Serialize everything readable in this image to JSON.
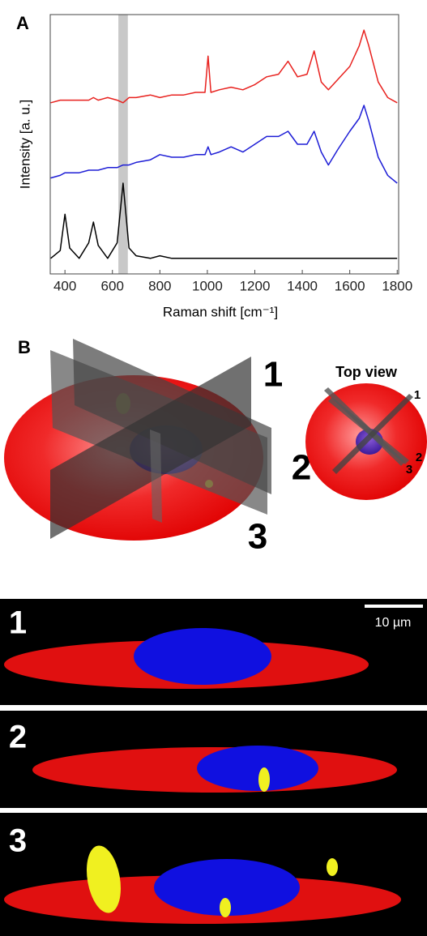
{
  "chart_data": {
    "type": "line",
    "panel_label": "A",
    "x_label": "Raman shift [cm⁻¹]",
    "y_label": "Intensity [a. u.]",
    "x": [
      340,
      380,
      400,
      420,
      460,
      500,
      520,
      540,
      580,
      620,
      645,
      670,
      700,
      760,
      800,
      850,
      900,
      950,
      990,
      1003,
      1015,
      1050,
      1100,
      1150,
      1200,
      1250,
      1300,
      1340,
      1380,
      1420,
      1450,
      1480,
      1510,
      1550,
      1600,
      1640,
      1660,
      1680,
      1720,
      1760,
      1800
    ],
    "series": [
      {
        "color": "#e8211e",
        "values": [
          66,
          67,
          67,
          67,
          67,
          67,
          68,
          67,
          68,
          67,
          66,
          68,
          68,
          69,
          68,
          69,
          69,
          70,
          70,
          84,
          70,
          71,
          72,
          71,
          73,
          76,
          77,
          82,
          76,
          77,
          86,
          74,
          71,
          75,
          80,
          88,
          94,
          88,
          74,
          68,
          66
        ]
      },
      {
        "color": "#1d1dd6",
        "values": [
          37,
          38,
          39,
          39,
          39,
          40,
          40,
          40,
          41,
          41,
          42,
          42,
          43,
          44,
          46,
          45,
          45,
          46,
          46,
          49,
          46,
          47,
          49,
          47,
          50,
          53,
          53,
          55,
          50,
          50,
          55,
          47,
          42,
          48,
          55,
          60,
          65,
          59,
          45,
          38,
          35
        ]
      },
      {
        "color": "#000000",
        "values": [
          6,
          9,
          23,
          10,
          6,
          12,
          20,
          11,
          6,
          12,
          35,
          10,
          7,
          6,
          7,
          6,
          6,
          6,
          6,
          6,
          6,
          6,
          6,
          6,
          6,
          6,
          6,
          6,
          6,
          6,
          6,
          6,
          6,
          6,
          6,
          6,
          6,
          6,
          6,
          6,
          6
        ]
      }
    ],
    "highlight": [
      625,
      665
    ],
    "highlight_color": "#c8c8c8",
    "xlim": [
      338,
      1806
    ],
    "ylim": [
      0,
      100
    ],
    "xticks": [
      400,
      600,
      800,
      1000,
      1200,
      1400,
      1600,
      1800
    ]
  },
  "panel_b": {
    "label": "B",
    "plane_labels": [
      "1",
      "2",
      "3"
    ],
    "top_view": {
      "title": "Top view",
      "plane_labels": [
        "1",
        "2",
        "3"
      ]
    }
  },
  "panel_c": {
    "scale_bar": "10 µm",
    "images": [
      {
        "label": "1"
      },
      {
        "label": "2"
      },
      {
        "label": "3"
      }
    ]
  }
}
